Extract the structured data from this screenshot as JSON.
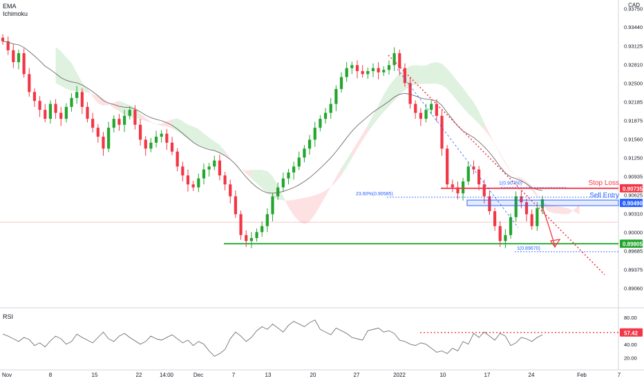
{
  "legend": {
    "line1": "EMA",
    "line2": "Ichimoku",
    "rsi": "RSI",
    "currency": "CAD"
  },
  "chart_data": {
    "type": "candlestick",
    "price_axis": {
      "ylim": [
        0.888,
        0.938
      ],
      "ticks": [
        "0.93750",
        "0.93440",
        "0.93125",
        "0.92810",
        "0.92500",
        "0.92185",
        "0.91875",
        "0.91560",
        "0.91250",
        "0.90935",
        "0.90625",
        "0.90310",
        "0.90000",
        "0.89685",
        "0.89375",
        "0.89060"
      ]
    },
    "x_axis": {
      "ticks": [
        "Nov",
        "8",
        "15",
        "22",
        "14:00",
        "Dec",
        "7",
        "13",
        "20",
        "27",
        "2022",
        "10",
        "17",
        "24",
        "Feb",
        "7"
      ]
    },
    "price_labels": [
      {
        "value": 0.90735,
        "text": "0.90735",
        "color": "#f23645"
      },
      {
        "value": 0.9049,
        "text": "0.90490",
        "color": "#2962ff"
      },
      {
        "value": 0.89805,
        "text": "0.89805",
        "color": "#22a62e"
      }
    ],
    "annotations": {
      "stop_loss": {
        "text": "Stop Loss",
        "value": 0.90735
      },
      "sell_entry": {
        "text": "Sell Entry",
        "value": 0.9049
      },
      "fib_high": {
        "text": "1(0.90750)",
        "value": 0.9075
      },
      "fib_236": {
        "text": "23.60%(0.90585)",
        "value": 0.90585
      },
      "fib_low": {
        "text": "1(0.89670)",
        "value": 0.8967
      },
      "support": {
        "value": 0.89805
      }
    },
    "close_series": [
      0.932,
      0.9305,
      0.9285,
      0.93,
      0.9265,
      0.9235,
      0.922,
      0.9205,
      0.919,
      0.9215,
      0.92,
      0.919,
      0.921,
      0.9225,
      0.9235,
      0.921,
      0.919,
      0.9175,
      0.916,
      0.914,
      0.9175,
      0.919,
      0.918,
      0.9195,
      0.9205,
      0.918,
      0.9155,
      0.914,
      0.915,
      0.916,
      0.9165,
      0.915,
      0.9135,
      0.911,
      0.9095,
      0.908,
      0.9075,
      0.909,
      0.9105,
      0.911,
      0.912,
      0.9095,
      0.908,
      0.906,
      0.903,
      0.8995,
      0.8985,
      0.899,
      0.9,
      0.901,
      0.903,
      0.906,
      0.9075,
      0.909,
      0.91,
      0.911,
      0.9125,
      0.914,
      0.9155,
      0.9175,
      0.919,
      0.92,
      0.9215,
      0.924,
      0.926,
      0.9275,
      0.928,
      0.927,
      0.9265,
      0.927,
      0.9275,
      0.9268,
      0.9272,
      0.928,
      0.93,
      0.9275,
      0.925,
      0.9215,
      0.92,
      0.919,
      0.9205,
      0.9215,
      0.9195,
      0.914,
      0.908,
      0.9075,
      0.9065,
      0.9085,
      0.911,
      0.9105,
      0.908,
      0.906,
      0.9035,
      0.901,
      0.8985,
      0.8995,
      0.9025,
      0.906,
      0.905,
      0.903,
      0.901,
      0.904,
      0.9055
    ],
    "rsi": {
      "ylim": [
        10,
        90
      ],
      "ticks": [
        "80.00",
        "40.00",
        "20.00"
      ],
      "marked_value": {
        "value": 57.42,
        "text": "57.42"
      },
      "values": [
        55,
        52,
        48,
        44,
        50,
        47,
        38,
        42,
        36,
        45,
        52,
        48,
        40,
        44,
        55,
        50,
        46,
        42,
        50,
        58,
        48,
        44,
        52,
        56,
        50,
        45,
        40,
        44,
        52,
        48,
        46,
        50,
        54,
        48,
        42,
        46,
        38,
        44,
        40,
        30,
        22,
        26,
        32,
        48,
        58,
        52,
        44,
        50,
        60,
        66,
        62,
        70,
        64,
        58,
        68,
        74,
        70,
        66,
        72,
        76,
        62,
        58,
        54,
        64,
        60,
        56,
        50,
        48,
        46,
        60,
        62,
        64,
        58,
        60,
        56,
        46,
        44,
        40,
        38,
        42,
        40,
        34,
        28,
        30,
        26,
        34,
        30,
        44,
        40,
        56,
        50,
        58,
        52,
        46,
        56,
        52,
        38,
        42,
        50,
        48,
        44,
        50,
        54
      ]
    }
  }
}
